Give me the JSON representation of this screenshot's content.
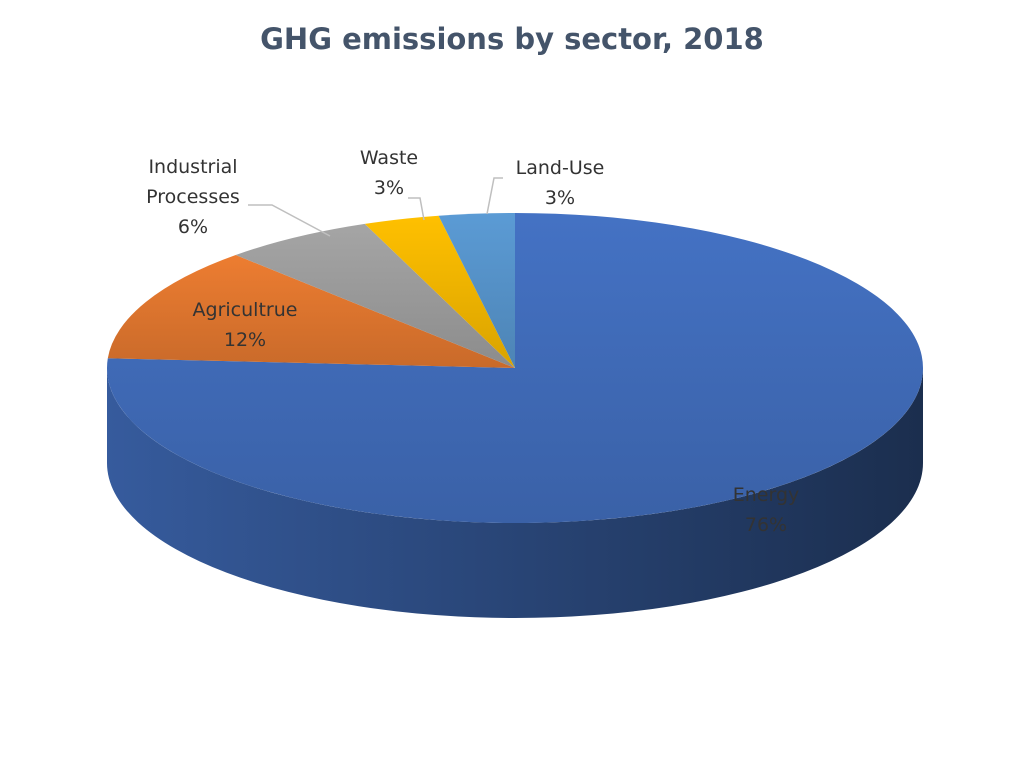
{
  "chart_data": {
    "type": "pie",
    "title": "GHG emissions by sector, 2018",
    "categories": [
      "Energy",
      "Agricultrue",
      "Industrial Processes",
      "Waste",
      "Land-Use"
    ],
    "values": [
      76,
      12,
      6,
      3,
      3
    ],
    "value_labels": [
      "76%",
      "12%",
      "6%",
      "3%",
      "3%"
    ],
    "colors": [
      "#4472c4",
      "#ed7d31",
      "#a5a5a5",
      "#ffc000",
      "#5b9bd5"
    ]
  }
}
